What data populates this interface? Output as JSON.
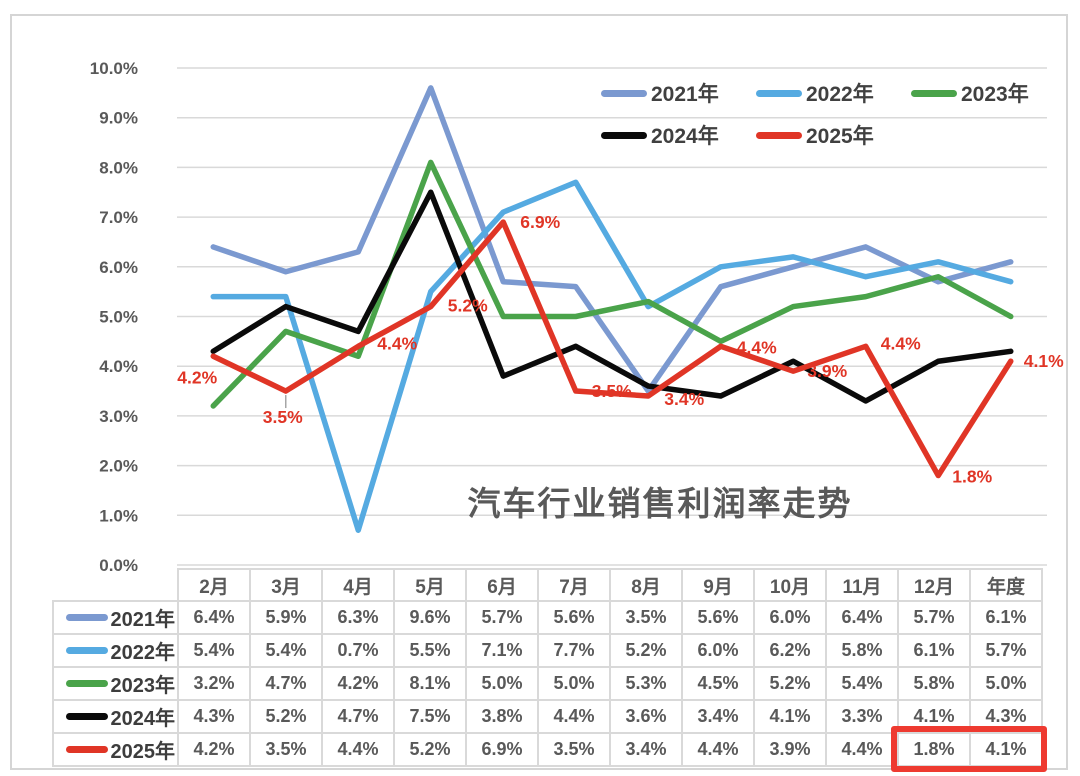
{
  "chart_data": {
    "type": "line",
    "title": "汽车行业销售利润率走势",
    "categories": [
      "2月",
      "3月",
      "4月",
      "5月",
      "6月",
      "7月",
      "8月",
      "9月",
      "10月",
      "11月",
      "12月",
      "年度"
    ],
    "y_ticks": [
      "0.0%",
      "1.0%",
      "2.0%",
      "3.0%",
      "4.0%",
      "5.0%",
      "6.0%",
      "7.0%",
      "8.0%",
      "9.0%",
      "10.0%"
    ],
    "ylim": [
      0,
      10
    ],
    "grid": "horizontal",
    "legend_position": "top-right-two-rows",
    "series": [
      {
        "name": "2021年",
        "color": "#7b99d0",
        "values": [
          6.4,
          5.9,
          6.3,
          9.6,
          5.7,
          5.6,
          3.5,
          5.6,
          6.0,
          6.4,
          5.7,
          6.1
        ]
      },
      {
        "name": "2022年",
        "color": "#55aae1",
        "values": [
          5.4,
          5.4,
          0.7,
          5.5,
          7.1,
          7.7,
          5.2,
          6.0,
          6.2,
          5.8,
          6.1,
          5.7
        ]
      },
      {
        "name": "2023年",
        "color": "#4aa34a",
        "values": [
          3.2,
          4.7,
          4.2,
          8.1,
          5.0,
          5.0,
          5.3,
          4.5,
          5.2,
          5.4,
          5.8,
          5.0
        ]
      },
      {
        "name": "2024年",
        "color": "#0a0a0a",
        "values": [
          4.3,
          5.2,
          4.7,
          7.5,
          3.8,
          4.4,
          3.6,
          3.4,
          4.1,
          3.3,
          4.1,
          4.3
        ]
      },
      {
        "name": "2025年",
        "color": "#e03526",
        "values": [
          4.2,
          3.5,
          4.4,
          5.2,
          6.9,
          3.5,
          3.4,
          4.4,
          3.9,
          4.4,
          1.8,
          4.1
        ],
        "data_labels": [
          "4.2%",
          "3.5%",
          "4.4%",
          "5.2%",
          "6.9%",
          "3.5%",
          "3.4%",
          "4.4%",
          "3.9%",
          "4.4%",
          "1.8%",
          "4.1%"
        ],
        "label_color": "#e03526"
      }
    ],
    "table": {
      "corner_label": "",
      "columns": [
        "2月",
        "3月",
        "4月",
        "5月",
        "6月",
        "7月",
        "8月",
        "9月",
        "10月",
        "11月",
        "12月",
        "年度"
      ]
    },
    "highlight": {
      "row": "2025年",
      "columns": [
        "12月",
        "年度"
      ],
      "values": [
        "1.8%",
        "4.1%"
      ],
      "box_color": "#ee3a30"
    },
    "colors": {
      "gridline": "#d9d9d9",
      "axis_text": "#595959",
      "table_border": "#d9d9d9",
      "frame_border": "#d5d5d5"
    }
  }
}
